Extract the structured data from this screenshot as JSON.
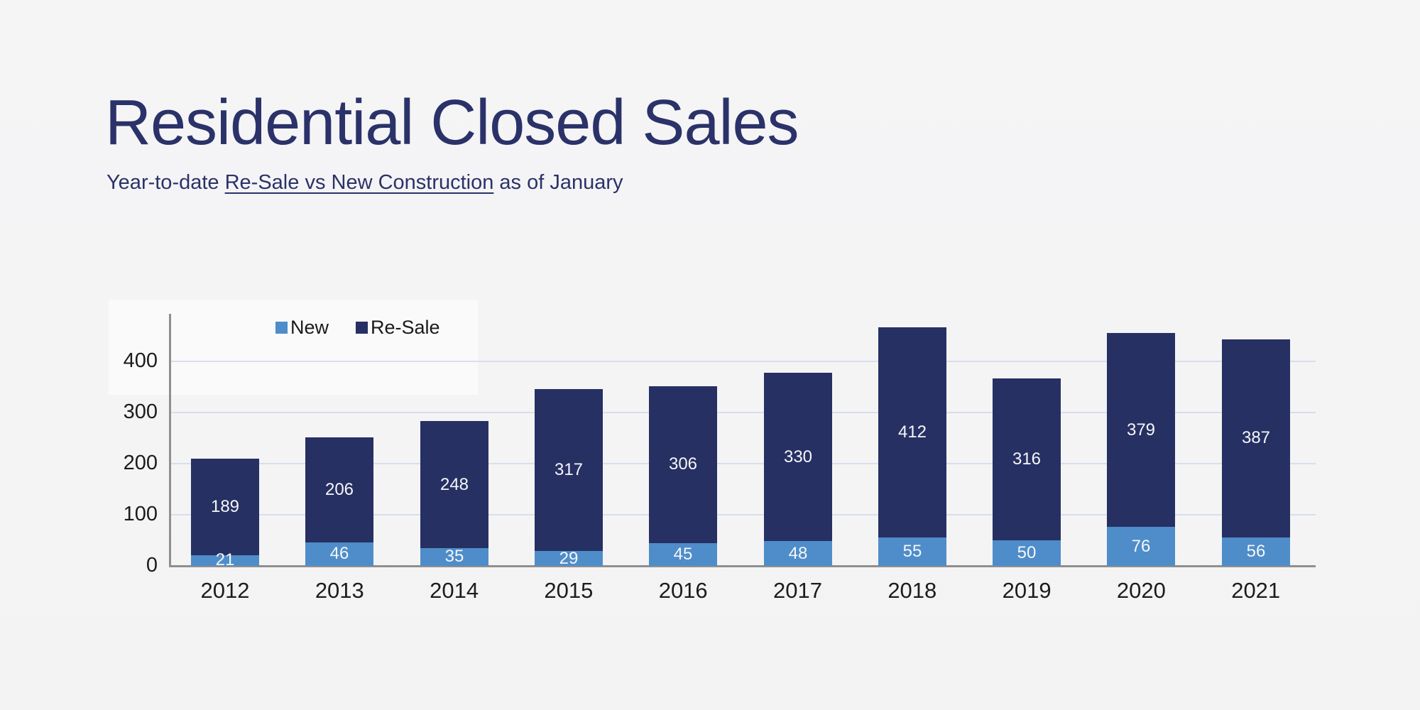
{
  "page": {
    "title": "Residential Closed Sales",
    "subtitle_prefix": "Year-to-date ",
    "subtitle_underlined": "Re-Sale vs New Construction",
    "subtitle_suffix": " as of January",
    "title_color": "#2b3269",
    "background_color": "#f4f4f5"
  },
  "legend": {
    "items": [
      {
        "label": "New",
        "color": "#4e8dc9"
      },
      {
        "label": "Re-Sale",
        "color": "#263063"
      }
    ]
  },
  "chart_data": {
    "type": "bar",
    "stacked": true,
    "title": "Residential Closed Sales",
    "subtitle": "Year-to-date Re-Sale vs New Construction as of January",
    "categories": [
      "2012",
      "2013",
      "2014",
      "2015",
      "2016",
      "2017",
      "2018",
      "2019",
      "2020",
      "2021"
    ],
    "series": [
      {
        "name": "New",
        "color": "#4e8dc9",
        "values": [
          21,
          46,
          35,
          29,
          45,
          48,
          55,
          50,
          76,
          56
        ]
      },
      {
        "name": "Re-Sale",
        "color": "#263063",
        "values": [
          189,
          206,
          248,
          317,
          306,
          330,
          412,
          316,
          379,
          387
        ]
      }
    ],
    "totals": [
      210,
      252,
      283,
      346,
      351,
      378,
      467,
      366,
      455,
      443
    ],
    "xlabel": "",
    "ylabel": "",
    "yticks": [
      0,
      100,
      200,
      300,
      400
    ],
    "ylim": [
      0,
      492
    ],
    "grid": true,
    "legend_position": "top-left-inside",
    "value_labels": "inside-white"
  }
}
